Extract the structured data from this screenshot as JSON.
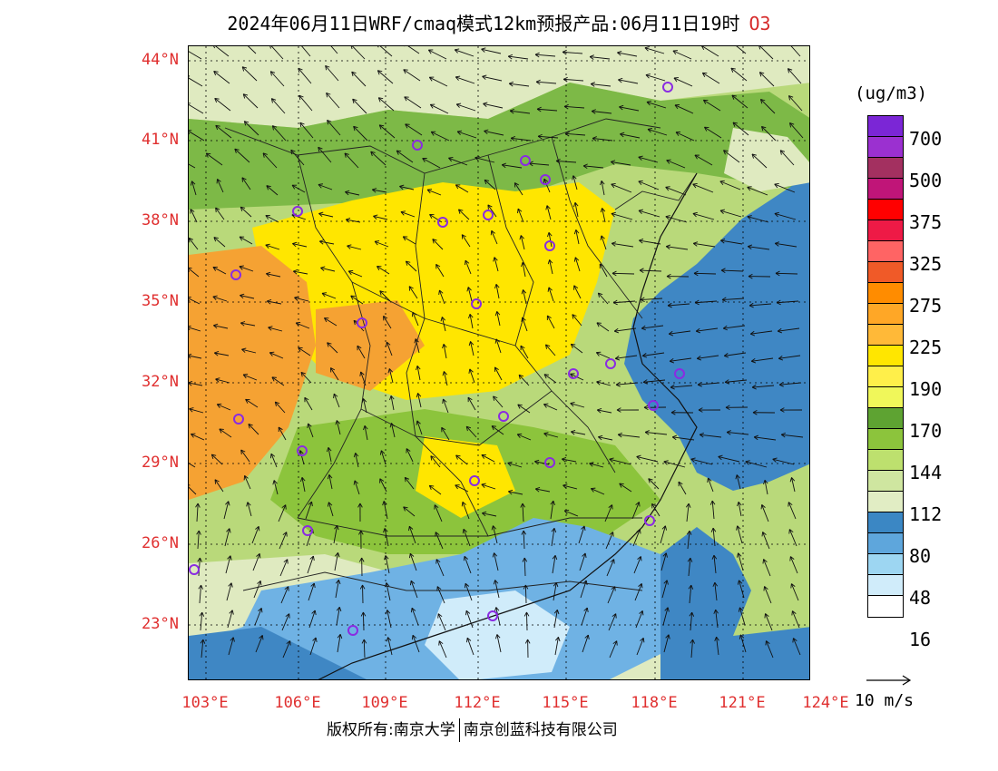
{
  "title": {
    "main": "2024年06月11日WRF/cmaq模式12km预报产品:06月11日19时",
    "species": "O3"
  },
  "lat_labels": [
    "44°N",
    "41°N",
    "38°N",
    "35°N",
    "32°N",
    "29°N",
    "26°N",
    "23°N"
  ],
  "lon_labels": [
    "103°E",
    "106°E",
    "109°E",
    "112°E",
    "115°E",
    "118°E",
    "121°E",
    "124°E"
  ],
  "legend": {
    "unit": "(ug/m3)",
    "colors": [
      "#7b26d6",
      "#9b30d0",
      "#a33060",
      "#c01578",
      "#ff0000",
      "#ee1a46",
      "#ff6464",
      "#f05a28",
      "#ff8c00",
      "#ffa726",
      "#ffb938",
      "#ffe600",
      "#ffef4a",
      "#f0f75a",
      "#5ea332",
      "#8cc43c",
      "#bde06e",
      "#cfe6a0",
      "#e1edc4",
      "#3b87c4",
      "#5ea6dc",
      "#9dd6f2",
      "#d0ecfa",
      "#ffffff"
    ],
    "labels": [
      "700",
      "500",
      "375",
      "325",
      "275",
      "225",
      "190",
      "170",
      "144",
      "112",
      "80",
      "48",
      "16"
    ]
  },
  "wind_ref": {
    "label": "10 m/s"
  },
  "sites": [
    "site"
  ],
  "footer": {
    "left": "版权所有:南京大学",
    "right": "南京创蓝科技有限公司"
  },
  "colors": {
    "ocean": "#3f87c4",
    "ocean_light": "#6fb2e4",
    "land_green": "#b9d97a",
    "dark_green": "#7db947",
    "yellow": "#ffe600",
    "orange": "#f5a233",
    "pale": "#dfeac0",
    "site_marker": "#8a2be2",
    "axis_label": "#e03030"
  }
}
